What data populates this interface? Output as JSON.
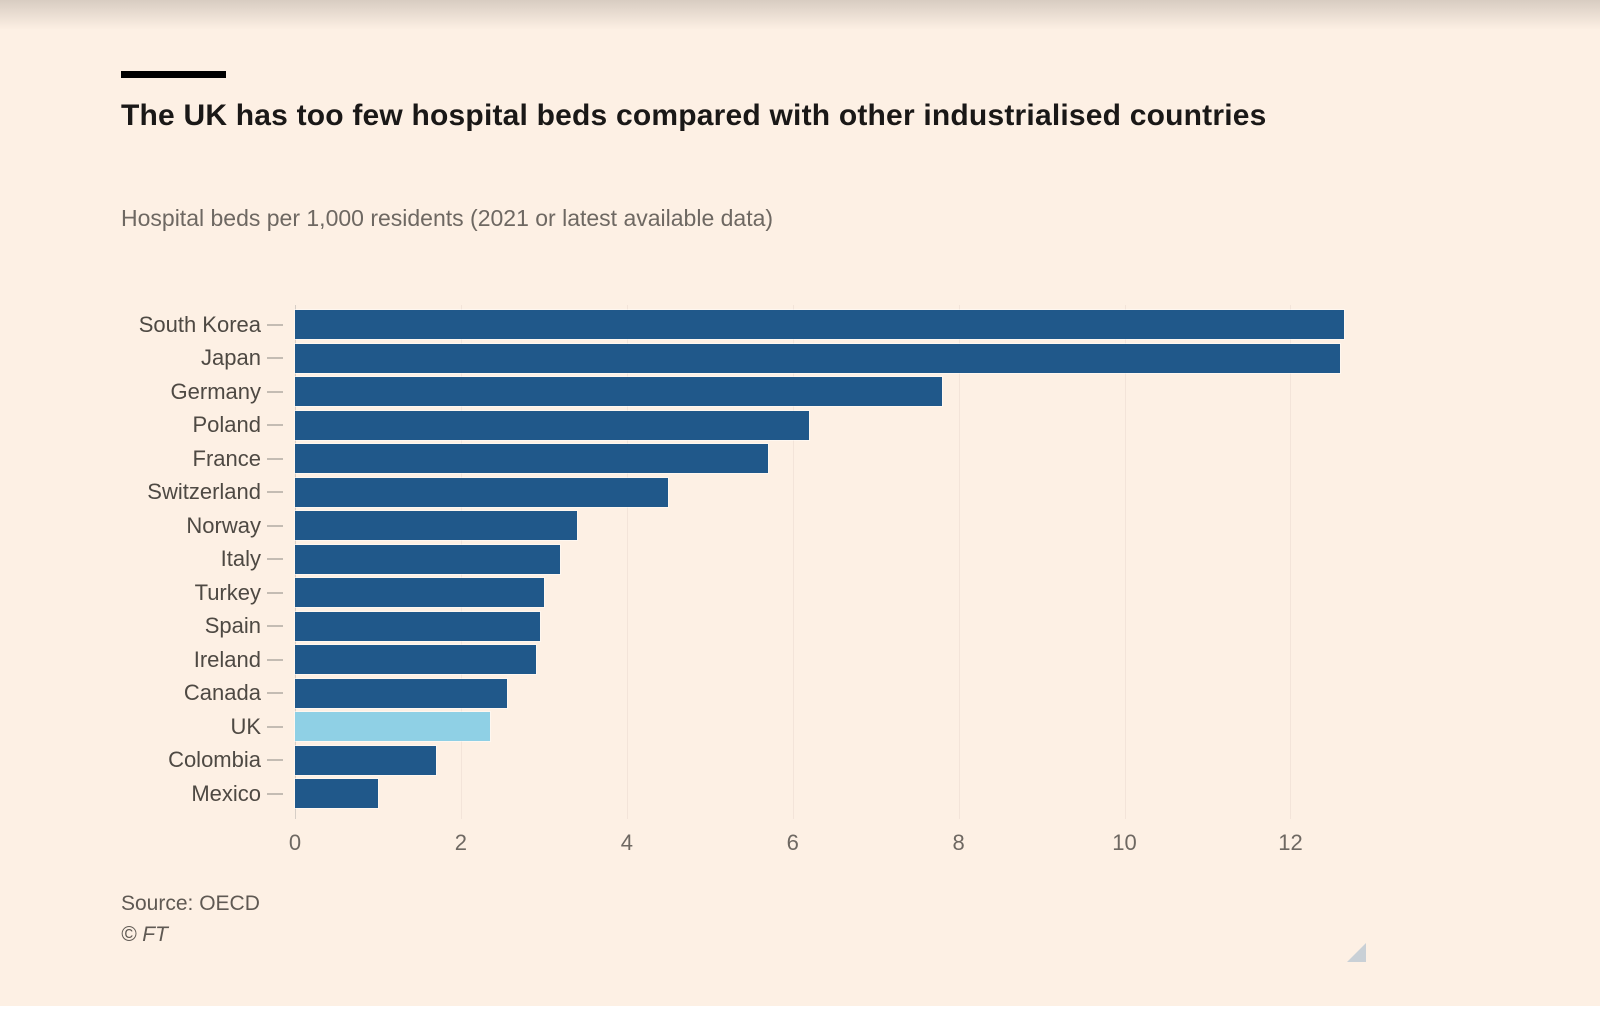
{
  "page": {
    "background_color": "#fdf0e4"
  },
  "header": {
    "title": "The UK has too few hospital beds compared with other industrialised countries",
    "subtitle": "Hospital beds per 1,000 residents (2021 or latest available data)"
  },
  "chart_data": {
    "type": "bar",
    "orientation": "horizontal",
    "title": "The UK has too few hospital beds compared with other industrialised countries",
    "subtitle": "Hospital beds per 1,000 residents (2021 or latest available data)",
    "categories": [
      "South Korea",
      "Japan",
      "Germany",
      "Poland",
      "France",
      "Switzerland",
      "Norway",
      "Italy",
      "Turkey",
      "Spain",
      "Ireland",
      "Canada",
      "UK",
      "Colombia",
      "Mexico"
    ],
    "values": [
      12.65,
      12.6,
      7.8,
      6.2,
      5.7,
      4.5,
      3.4,
      3.2,
      3.0,
      2.95,
      2.9,
      2.55,
      2.35,
      1.7,
      1.0
    ],
    "highlight_category": "UK",
    "xlabel": "",
    "ylabel": "",
    "x_ticks": [
      0,
      2,
      4,
      6,
      8,
      10,
      12
    ],
    "xlim": [
      0,
      13.2
    ],
    "grid": "vertical",
    "legend": "none",
    "colors": {
      "bar": "#20588a",
      "highlight_bar": "#8fd0e5",
      "gridline": "#f3e4d9",
      "zero_line": "#d6cec6"
    }
  },
  "footer": {
    "source": "Source: OECD",
    "copyright": "© FT"
  }
}
